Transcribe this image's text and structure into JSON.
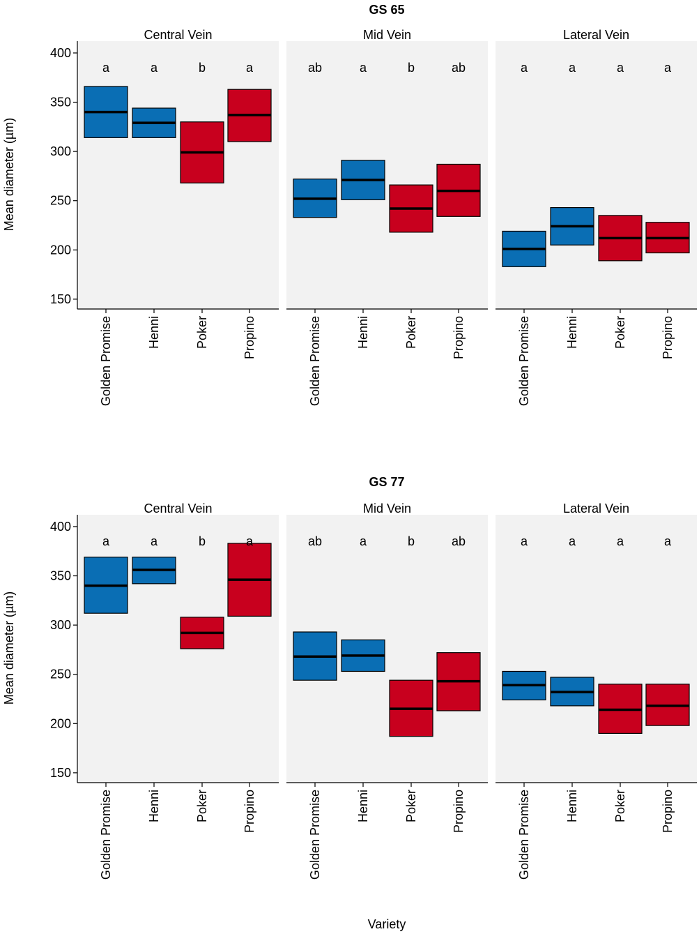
{
  "colors": {
    "blue": "#0a6eb4",
    "red": "#c8001e",
    "panel": "#f2f2f2"
  },
  "chart_data": {
    "type": "crossbar",
    "xlabel": "Variety",
    "ylabel": "Mean diameter (µm)",
    "categories": [
      "Golden Promise",
      "Henni",
      "Poker",
      "Propino"
    ],
    "category_colors": [
      "blue",
      "blue",
      "red",
      "red"
    ],
    "ylim": [
      140,
      412
    ],
    "yticks": [
      150,
      200,
      250,
      300,
      350,
      400
    ],
    "groups": [
      {
        "title": "GS 65",
        "facets": [
          {
            "strip": "Central Vein",
            "letters": [
              "a",
              "a",
              "b",
              "a"
            ],
            "mean": [
              340,
              329,
              299,
              337
            ],
            "lower": [
              314,
              314,
              268,
              310
            ],
            "upper": [
              366,
              344,
              330,
              363
            ]
          },
          {
            "strip": "Mid Vein",
            "letters": [
              "ab",
              "a",
              "b",
              "ab"
            ],
            "mean": [
              252,
              271,
              242,
              260
            ],
            "lower": [
              233,
              251,
              218,
              234
            ],
            "upper": [
              272,
              291,
              266,
              287
            ]
          },
          {
            "strip": "Lateral Vein",
            "letters": [
              "a",
              "a",
              "a",
              "a"
            ],
            "mean": [
              201,
              224,
              212,
              212
            ],
            "lower": [
              183,
              205,
              189,
              197
            ],
            "upper": [
              219,
              243,
              235,
              228
            ]
          }
        ]
      },
      {
        "title": "GS 77",
        "facets": [
          {
            "strip": "Central Vein",
            "letters": [
              "a",
              "a",
              "b",
              "a"
            ],
            "mean": [
              340,
              356,
              292,
              346
            ],
            "lower": [
              312,
              342,
              276,
              309
            ],
            "upper": [
              369,
              369,
              308,
              383
            ]
          },
          {
            "strip": "Mid Vein",
            "letters": [
              "ab",
              "a",
              "b",
              "ab"
            ],
            "mean": [
              268,
              269,
              215,
              243
            ],
            "lower": [
              244,
              253,
              187,
              213
            ],
            "upper": [
              293,
              285,
              244,
              272
            ]
          },
          {
            "strip": "Lateral Vein",
            "letters": [
              "a",
              "a",
              "a",
              "a"
            ],
            "mean": [
              239,
              232,
              214,
              218
            ],
            "lower": [
              224,
              218,
              190,
              198
            ],
            "upper": [
              253,
              247,
              240,
              240
            ]
          }
        ]
      }
    ]
  }
}
